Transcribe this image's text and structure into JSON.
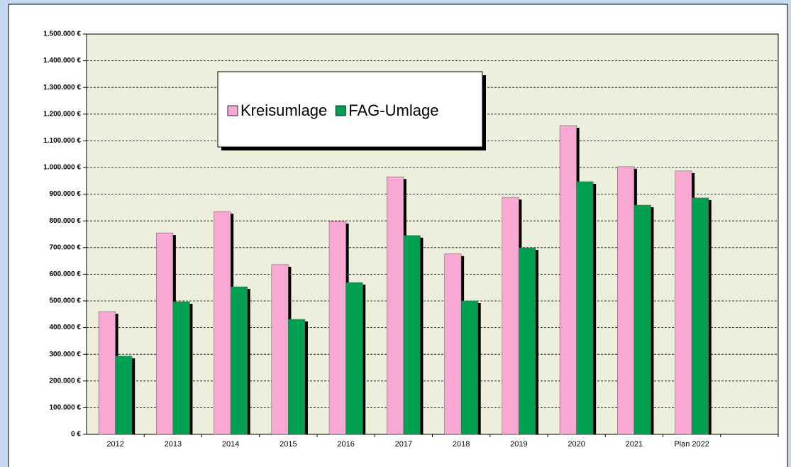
{
  "chart_data": {
    "type": "bar",
    "categories": [
      "2012",
      "2013",
      "2014",
      "2015",
      "2016",
      "2017",
      "2018",
      "2019",
      "2020",
      "2021",
      "Plan 2022",
      null
    ],
    "series": [
      {
        "name": "Kreisumlage",
        "color": "#f9a8d4",
        "values": [
          460000,
          755000,
          835000,
          636000,
          798000,
          965000,
          676000,
          888000,
          1157000,
          1003000,
          987000,
          null
        ]
      },
      {
        "name": "FAG-Umlage",
        "color": "#00a050",
        "values": [
          293000,
          497000,
          553000,
          431000,
          569000,
          745000,
          500000,
          699000,
          947000,
          859000,
          886000,
          null
        ]
      }
    ],
    "ylim": [
      0,
      1500000
    ],
    "yticks": [
      {
        "value": 0,
        "label": "0 €"
      },
      {
        "value": 100000,
        "label": "100.000 €"
      },
      {
        "value": 200000,
        "label": "200.000 €"
      },
      {
        "value": 300000,
        "label": "300.000 €"
      },
      {
        "value": 400000,
        "label": "400.000 €"
      },
      {
        "value": 500000,
        "label": "500.000 €"
      },
      {
        "value": 600000,
        "label": "600.000 €"
      },
      {
        "value": 700000,
        "label": "700.000 €"
      },
      {
        "value": 800000,
        "label": "800.000 €"
      },
      {
        "value": 900000,
        "label": "900.000 €"
      },
      {
        "value": 1000000,
        "label": "1.000.000 €"
      },
      {
        "value": 1100000,
        "label": "1.100.000 €"
      },
      {
        "value": 1200000,
        "label": "1.200.000 €"
      },
      {
        "value": 1300000,
        "label": "1.300.000 €"
      },
      {
        "value": 1400000,
        "label": "1.400.000 €"
      },
      {
        "value": 1500000,
        "label": "1.500.000 €"
      }
    ],
    "grid": true,
    "legend_position": "top-left"
  }
}
